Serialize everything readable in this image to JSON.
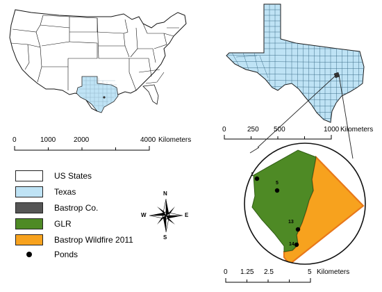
{
  "scalebar_us": {
    "ticks": [
      "0",
      "1000",
      "2000",
      "4000"
    ],
    "unit": "Kilometers"
  },
  "scalebar_tx": {
    "ticks": [
      "0",
      "250",
      "500",
      "1000"
    ],
    "unit": "Kilometers"
  },
  "scalebar_site": {
    "ticks": [
      "0",
      "1.25",
      "2.5",
      "5"
    ],
    "unit": "Kilometers"
  },
  "legend": {
    "items": [
      {
        "label": "US States",
        "color": "#ffffff"
      },
      {
        "label": "Texas",
        "color": "#bfe3f5"
      },
      {
        "label": "Bastrop Co.",
        "color": "#555555"
      },
      {
        "label": "GLR",
        "color": "#4e8a25"
      },
      {
        "label": "Bastrop Wildfire 2011",
        "color": "#f7a21e"
      }
    ],
    "ponds_label": "Ponds"
  },
  "north_arrow": {
    "n": "N",
    "s": "S",
    "e": "E",
    "w": "W"
  },
  "ponds": [
    "1",
    "5",
    "13",
    "14"
  ],
  "colors": {
    "texas_fill": "#bfe3f5",
    "glr": "#4e8a25",
    "wildfire": "#f7a21e",
    "wildfire_edge": "#e8781a"
  }
}
